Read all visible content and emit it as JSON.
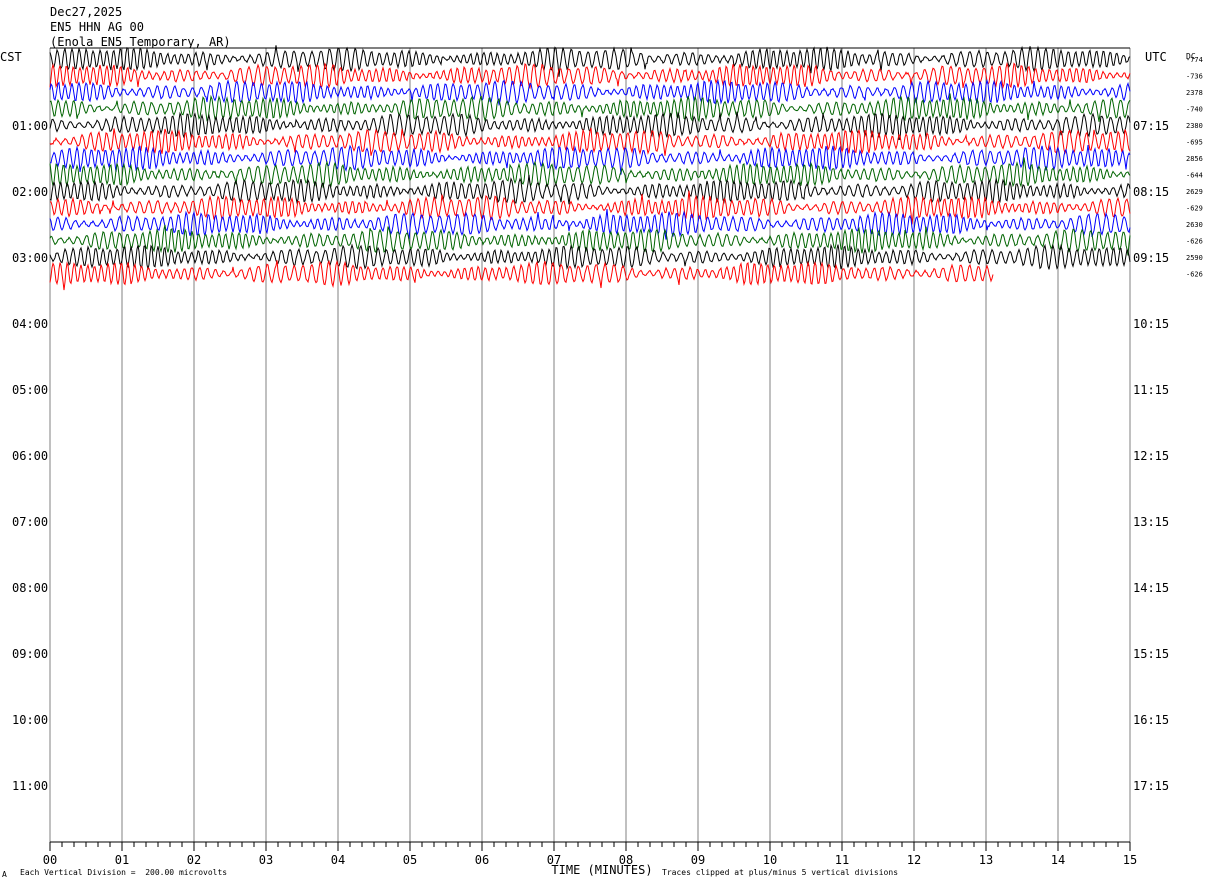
{
  "header": {
    "date": "Dec27,2025",
    "channel": "EN5 HHN AG 00",
    "station": "(Enola EN5 Temporary, AR)"
  },
  "labels": {
    "left_tz": "CST",
    "right_tz": "UTC",
    "dc": "DC",
    "footer_left": "Each Vertical Division =  200.00 microvolts",
    "footer_right": "Traces clipped at plus/minus 5 vertical divisions",
    "corner": "A"
  },
  "colors": {
    "background": "#ffffff",
    "grid": "#808080",
    "traces": [
      "#000000",
      "#ff0000",
      "#0000ff",
      "#006400"
    ]
  },
  "chart_data": {
    "type": "line",
    "title": "",
    "xlabel": "TIME (MINUTES)",
    "ylabel": "",
    "xlim": [
      0,
      15
    ],
    "x_ticks": [
      "00",
      "01",
      "02",
      "03",
      "04",
      "05",
      "06",
      "07",
      "08",
      "09",
      "10",
      "11",
      "12",
      "13",
      "14",
      "15"
    ],
    "left_times": [
      "01:00",
      "02:00",
      "03:00",
      "04:00",
      "05:00",
      "06:00",
      "07:00",
      "08:00",
      "09:00",
      "10:00",
      "11:00"
    ],
    "right_times": [
      "07:15",
      "08:15",
      "09:15",
      "10:15",
      "11:15",
      "12:15",
      "13:15",
      "14:15",
      "15:15",
      "16:15",
      "17:15"
    ],
    "traces_per_hour": 4,
    "minutes_per_trace": 15,
    "grid": true,
    "series": [
      {
        "color": "black",
        "dc": "-774",
        "end_minute": 15
      },
      {
        "color": "red",
        "dc": "-736",
        "end_minute": 15
      },
      {
        "color": "blue",
        "dc": "2378",
        "end_minute": 15
      },
      {
        "color": "green",
        "dc": "-740",
        "end_minute": 15
      },
      {
        "color": "black",
        "dc": "2380",
        "end_minute": 15
      },
      {
        "color": "red",
        "dc": "-695",
        "end_minute": 15
      },
      {
        "color": "blue",
        "dc": "2856",
        "end_minute": 15
      },
      {
        "color": "green",
        "dc": "-644",
        "end_minute": 15
      },
      {
        "color": "black",
        "dc": "2629",
        "end_minute": 15
      },
      {
        "color": "red",
        "dc": "-629",
        "end_minute": 15
      },
      {
        "color": "blue",
        "dc": "2630",
        "end_minute": 15
      },
      {
        "color": "green",
        "dc": "-626",
        "end_minute": 15
      },
      {
        "color": "black",
        "dc": "2590",
        "end_minute": 15
      },
      {
        "color": "red",
        "dc": "-626",
        "end_minute": 13.1
      }
    ]
  }
}
